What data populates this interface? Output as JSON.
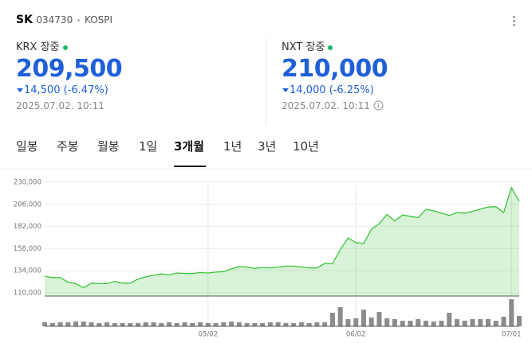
{
  "header": {
    "name": "SK",
    "code": "034730",
    "market": "KOSPI"
  },
  "quotes": [
    {
      "market": "KRX 장중",
      "price": "209,500",
      "change": "14,500",
      "change_pct": "(-6.47%)",
      "time": "2025.07.02. 10:11"
    },
    {
      "market": "NXT 장중",
      "price": "210,000",
      "change": "14,000",
      "change_pct": "(-6.25%)",
      "time": "2025.07.02. 10:11"
    }
  ],
  "tabs": [
    "일봉",
    "주봉",
    "월봉",
    "1일",
    "3개월",
    "1년",
    "3년",
    "10년"
  ],
  "chart_data": {
    "type": "area",
    "categories": [
      null,
      null,
      null,
      null,
      null,
      null,
      null,
      null,
      null,
      null,
      null,
      null,
      null,
      null,
      null,
      null,
      null,
      null,
      null,
      null,
      null,
      "05/02",
      null,
      null,
      null,
      null,
      null,
      null,
      null,
      null,
      null,
      null,
      null,
      null,
      null,
      null,
      null,
      null,
      null,
      null,
      "06/02",
      null,
      null,
      null,
      null,
      null,
      null,
      null,
      null,
      null,
      null,
      null,
      null,
      null,
      null,
      null,
      null,
      null,
      null,
      null,
      "07/01",
      null
    ],
    "series": [
      {
        "color": "#3cc43c",
        "values": [
          128000,
          126500,
          126500,
          121500,
          120000,
          115500,
          120500,
          120000,
          120000,
          122500,
          120500,
          120500,
          125000,
          127500,
          129000,
          130500,
          129500,
          131500,
          131000,
          131000,
          132000,
          131500,
          132500,
          133000,
          136000,
          138500,
          138000,
          136500,
          137500,
          137000,
          138000,
          139000,
          139000,
          138000,
          137000,
          137000,
          142000,
          141500,
          157000,
          169500,
          164500,
          163500,
          179000,
          185000,
          195000,
          188000,
          194500,
          193000,
          191500,
          200500,
          199000,
          196500,
          194000,
          197000,
          196500,
          198500,
          201000,
          203000,
          203500,
          197000,
          224000,
          209500
        ]
      }
    ],
    "volume": {
      "color": "#8c8c8c",
      "values": [
        5,
        4,
        5,
        5,
        6,
        6,
        5,
        4,
        5,
        4,
        4,
        4,
        4,
        5,
        5,
        4,
        5,
        4,
        5,
        4,
        5,
        4,
        4,
        5,
        6,
        5,
        4,
        4,
        4,
        5,
        5,
        4,
        4,
        5,
        4,
        5,
        5,
        17,
        24,
        9,
        10,
        21,
        11,
        18,
        10,
        9,
        7,
        7,
        9,
        7,
        6,
        7,
        17,
        9,
        7,
        9,
        9,
        9,
        7,
        12,
        34,
        13
      ]
    },
    "ylim": [
      106500,
      231700
    ],
    "yticks": [
      {
        "value": 110000,
        "label": "110,000"
      },
      {
        "value": 134000,
        "label": "134,000"
      },
      {
        "value": 158000,
        "label": "158,000"
      },
      {
        "value": 182000,
        "label": "182,000"
      },
      {
        "value": 206000,
        "label": "206,000"
      },
      {
        "value": 230000,
        "label": "230,000"
      }
    ],
    "grid": true
  }
}
